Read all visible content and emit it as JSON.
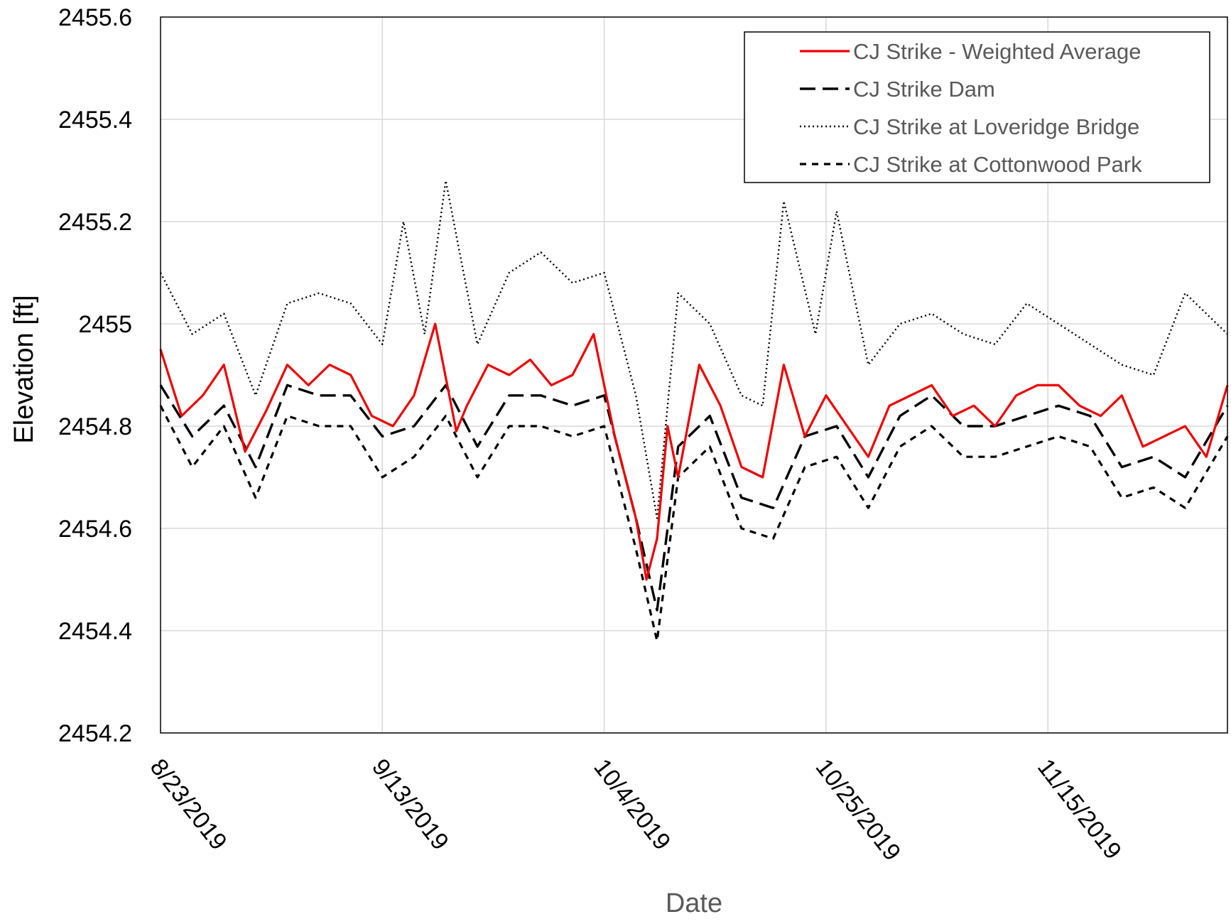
{
  "chart_data": {
    "type": "line",
    "xlabel": "Date",
    "ylabel": "Elevation [ft]",
    "ylim": [
      2454.2,
      2455.6
    ],
    "yticks": [
      2454.2,
      2454.4,
      2454.6,
      2454.8,
      2455,
      2455.2,
      2455.4,
      2455.6
    ],
    "yticklabels": [
      "2454.2",
      "2454.4",
      "2454.6",
      "2454.8",
      "2455",
      "2455.2",
      "2455.4",
      "2455.6"
    ],
    "xlim": [
      "2019-08-23",
      "2019-12-02"
    ],
    "xticks": [
      "2019-08-23",
      "2019-09-13",
      "2019-10-04",
      "2019-10-25",
      "2019-11-15"
    ],
    "xticklabels": [
      "8/23/2019",
      "9/13/2019",
      "10/4/2019",
      "10/25/2019",
      "11/15/2019"
    ],
    "grid": true,
    "legend_position": "top-right",
    "series": [
      {
        "name": "CJ Strike - Weighted Average",
        "color": "#ee0000",
        "dash": "solid",
        "x": [
          "2019-08-23",
          "2019-08-25",
          "2019-08-27",
          "2019-08-29",
          "2019-08-31",
          "2019-09-02",
          "2019-09-04",
          "2019-09-06",
          "2019-09-08",
          "2019-09-10",
          "2019-09-12",
          "2019-09-14",
          "2019-09-16",
          "2019-09-18",
          "2019-09-20",
          "2019-09-21",
          "2019-09-23",
          "2019-09-25",
          "2019-09-27",
          "2019-09-29",
          "2019-10-01",
          "2019-10-03",
          "2019-10-05",
          "2019-10-07",
          "2019-10-08",
          "2019-10-09",
          "2019-10-10",
          "2019-10-11",
          "2019-10-13",
          "2019-10-15",
          "2019-10-17",
          "2019-10-19",
          "2019-10-21",
          "2019-10-23",
          "2019-10-25",
          "2019-10-27",
          "2019-10-29",
          "2019-10-31",
          "2019-11-02",
          "2019-11-04",
          "2019-11-06",
          "2019-11-08",
          "2019-11-10",
          "2019-11-12",
          "2019-11-14",
          "2019-11-16",
          "2019-11-18",
          "2019-11-20",
          "2019-11-22",
          "2019-11-24",
          "2019-11-26",
          "2019-11-28",
          "2019-11-30",
          "2019-12-02"
        ],
        "y": [
          2454.95,
          2454.82,
          2454.86,
          2454.92,
          2454.75,
          2454.83,
          2454.92,
          2454.88,
          2454.92,
          2454.9,
          2454.82,
          2454.8,
          2454.86,
          2455.0,
          2454.79,
          2454.84,
          2454.92,
          2454.9,
          2454.93,
          2454.88,
          2454.9,
          2454.98,
          2454.78,
          2454.62,
          2454.5,
          2454.58,
          2454.8,
          2454.7,
          2454.92,
          2454.84,
          2454.72,
          2454.7,
          2454.92,
          2454.78,
          2454.86,
          2454.8,
          2454.74,
          2454.84,
          2454.86,
          2454.88,
          2454.82,
          2454.84,
          2454.8,
          2454.86,
          2454.88,
          2454.88,
          2454.84,
          2454.82,
          2454.86,
          2454.76,
          2454.78,
          2454.8,
          2454.74,
          2454.88
        ]
      },
      {
        "name": "CJ Strike Dam",
        "color": "#000000",
        "dash": "long-dash",
        "x": [
          "2019-08-23",
          "2019-08-26",
          "2019-08-29",
          "2019-09-01",
          "2019-09-04",
          "2019-09-07",
          "2019-09-10",
          "2019-09-13",
          "2019-09-16",
          "2019-09-19",
          "2019-09-22",
          "2019-09-25",
          "2019-09-28",
          "2019-10-01",
          "2019-10-04",
          "2019-10-07",
          "2019-10-09",
          "2019-10-11",
          "2019-10-14",
          "2019-10-17",
          "2019-10-20",
          "2019-10-23",
          "2019-10-26",
          "2019-10-29",
          "2019-11-01",
          "2019-11-04",
          "2019-11-07",
          "2019-11-10",
          "2019-11-13",
          "2019-11-16",
          "2019-11-19",
          "2019-11-22",
          "2019-11-25",
          "2019-11-28",
          "2019-12-02"
        ],
        "y": [
          2454.88,
          2454.78,
          2454.84,
          2454.72,
          2454.88,
          2454.86,
          2454.86,
          2454.78,
          2454.8,
          2454.88,
          2454.76,
          2454.86,
          2454.86,
          2454.84,
          2454.86,
          2454.62,
          2454.44,
          2454.76,
          2454.82,
          2454.66,
          2454.64,
          2454.78,
          2454.8,
          2454.7,
          2454.82,
          2454.86,
          2454.8,
          2454.8,
          2454.82,
          2454.84,
          2454.82,
          2454.72,
          2454.74,
          2454.7,
          2454.84
        ]
      },
      {
        "name": "CJ Strike at Loveridge Bridge",
        "color": "#000000",
        "dash": "dotted",
        "x": [
          "2019-08-23",
          "2019-08-26",
          "2019-08-29",
          "2019-09-01",
          "2019-09-04",
          "2019-09-07",
          "2019-09-10",
          "2019-09-13",
          "2019-09-15",
          "2019-09-17",
          "2019-09-19",
          "2019-09-22",
          "2019-09-25",
          "2019-09-28",
          "2019-10-01",
          "2019-10-04",
          "2019-10-07",
          "2019-10-09",
          "2019-10-11",
          "2019-10-14",
          "2019-10-17",
          "2019-10-19",
          "2019-10-21",
          "2019-10-24",
          "2019-10-26",
          "2019-10-29",
          "2019-11-01",
          "2019-11-04",
          "2019-11-07",
          "2019-11-10",
          "2019-11-13",
          "2019-11-16",
          "2019-11-19",
          "2019-11-22",
          "2019-11-25",
          "2019-11-28",
          "2019-12-02"
        ],
        "y": [
          2455.1,
          2454.98,
          2455.02,
          2454.86,
          2455.04,
          2455.06,
          2455.04,
          2454.96,
          2455.2,
          2454.98,
          2455.28,
          2454.96,
          2455.1,
          2455.14,
          2455.08,
          2455.1,
          2454.86,
          2454.62,
          2455.06,
          2455.0,
          2454.86,
          2454.84,
          2455.24,
          2454.98,
          2455.22,
          2454.92,
          2455.0,
          2455.02,
          2454.98,
          2454.96,
          2455.04,
          2455.0,
          2454.96,
          2454.92,
          2454.9,
          2455.06,
          2454.98
        ]
      },
      {
        "name": "CJ Strike at Cottonwood Park",
        "color": "#000000",
        "dash": "dashed",
        "x": [
          "2019-08-23",
          "2019-08-26",
          "2019-08-29",
          "2019-09-01",
          "2019-09-04",
          "2019-09-07",
          "2019-09-10",
          "2019-09-13",
          "2019-09-16",
          "2019-09-19",
          "2019-09-22",
          "2019-09-25",
          "2019-09-28",
          "2019-10-01",
          "2019-10-04",
          "2019-10-07",
          "2019-10-09",
          "2019-10-11",
          "2019-10-14",
          "2019-10-17",
          "2019-10-20",
          "2019-10-23",
          "2019-10-26",
          "2019-10-29",
          "2019-11-01",
          "2019-11-04",
          "2019-11-07",
          "2019-11-10",
          "2019-11-13",
          "2019-11-16",
          "2019-11-19",
          "2019-11-22",
          "2019-11-25",
          "2019-11-28",
          "2019-12-02"
        ],
        "y": [
          2454.84,
          2454.72,
          2454.8,
          2454.66,
          2454.82,
          2454.8,
          2454.8,
          2454.7,
          2454.74,
          2454.82,
          2454.7,
          2454.8,
          2454.8,
          2454.78,
          2454.8,
          2454.56,
          2454.38,
          2454.7,
          2454.76,
          2454.6,
          2454.58,
          2454.72,
          2454.74,
          2454.64,
          2454.76,
          2454.8,
          2454.74,
          2454.74,
          2454.76,
          2454.78,
          2454.76,
          2454.66,
          2454.68,
          2454.64,
          2454.78
        ]
      }
    ]
  }
}
